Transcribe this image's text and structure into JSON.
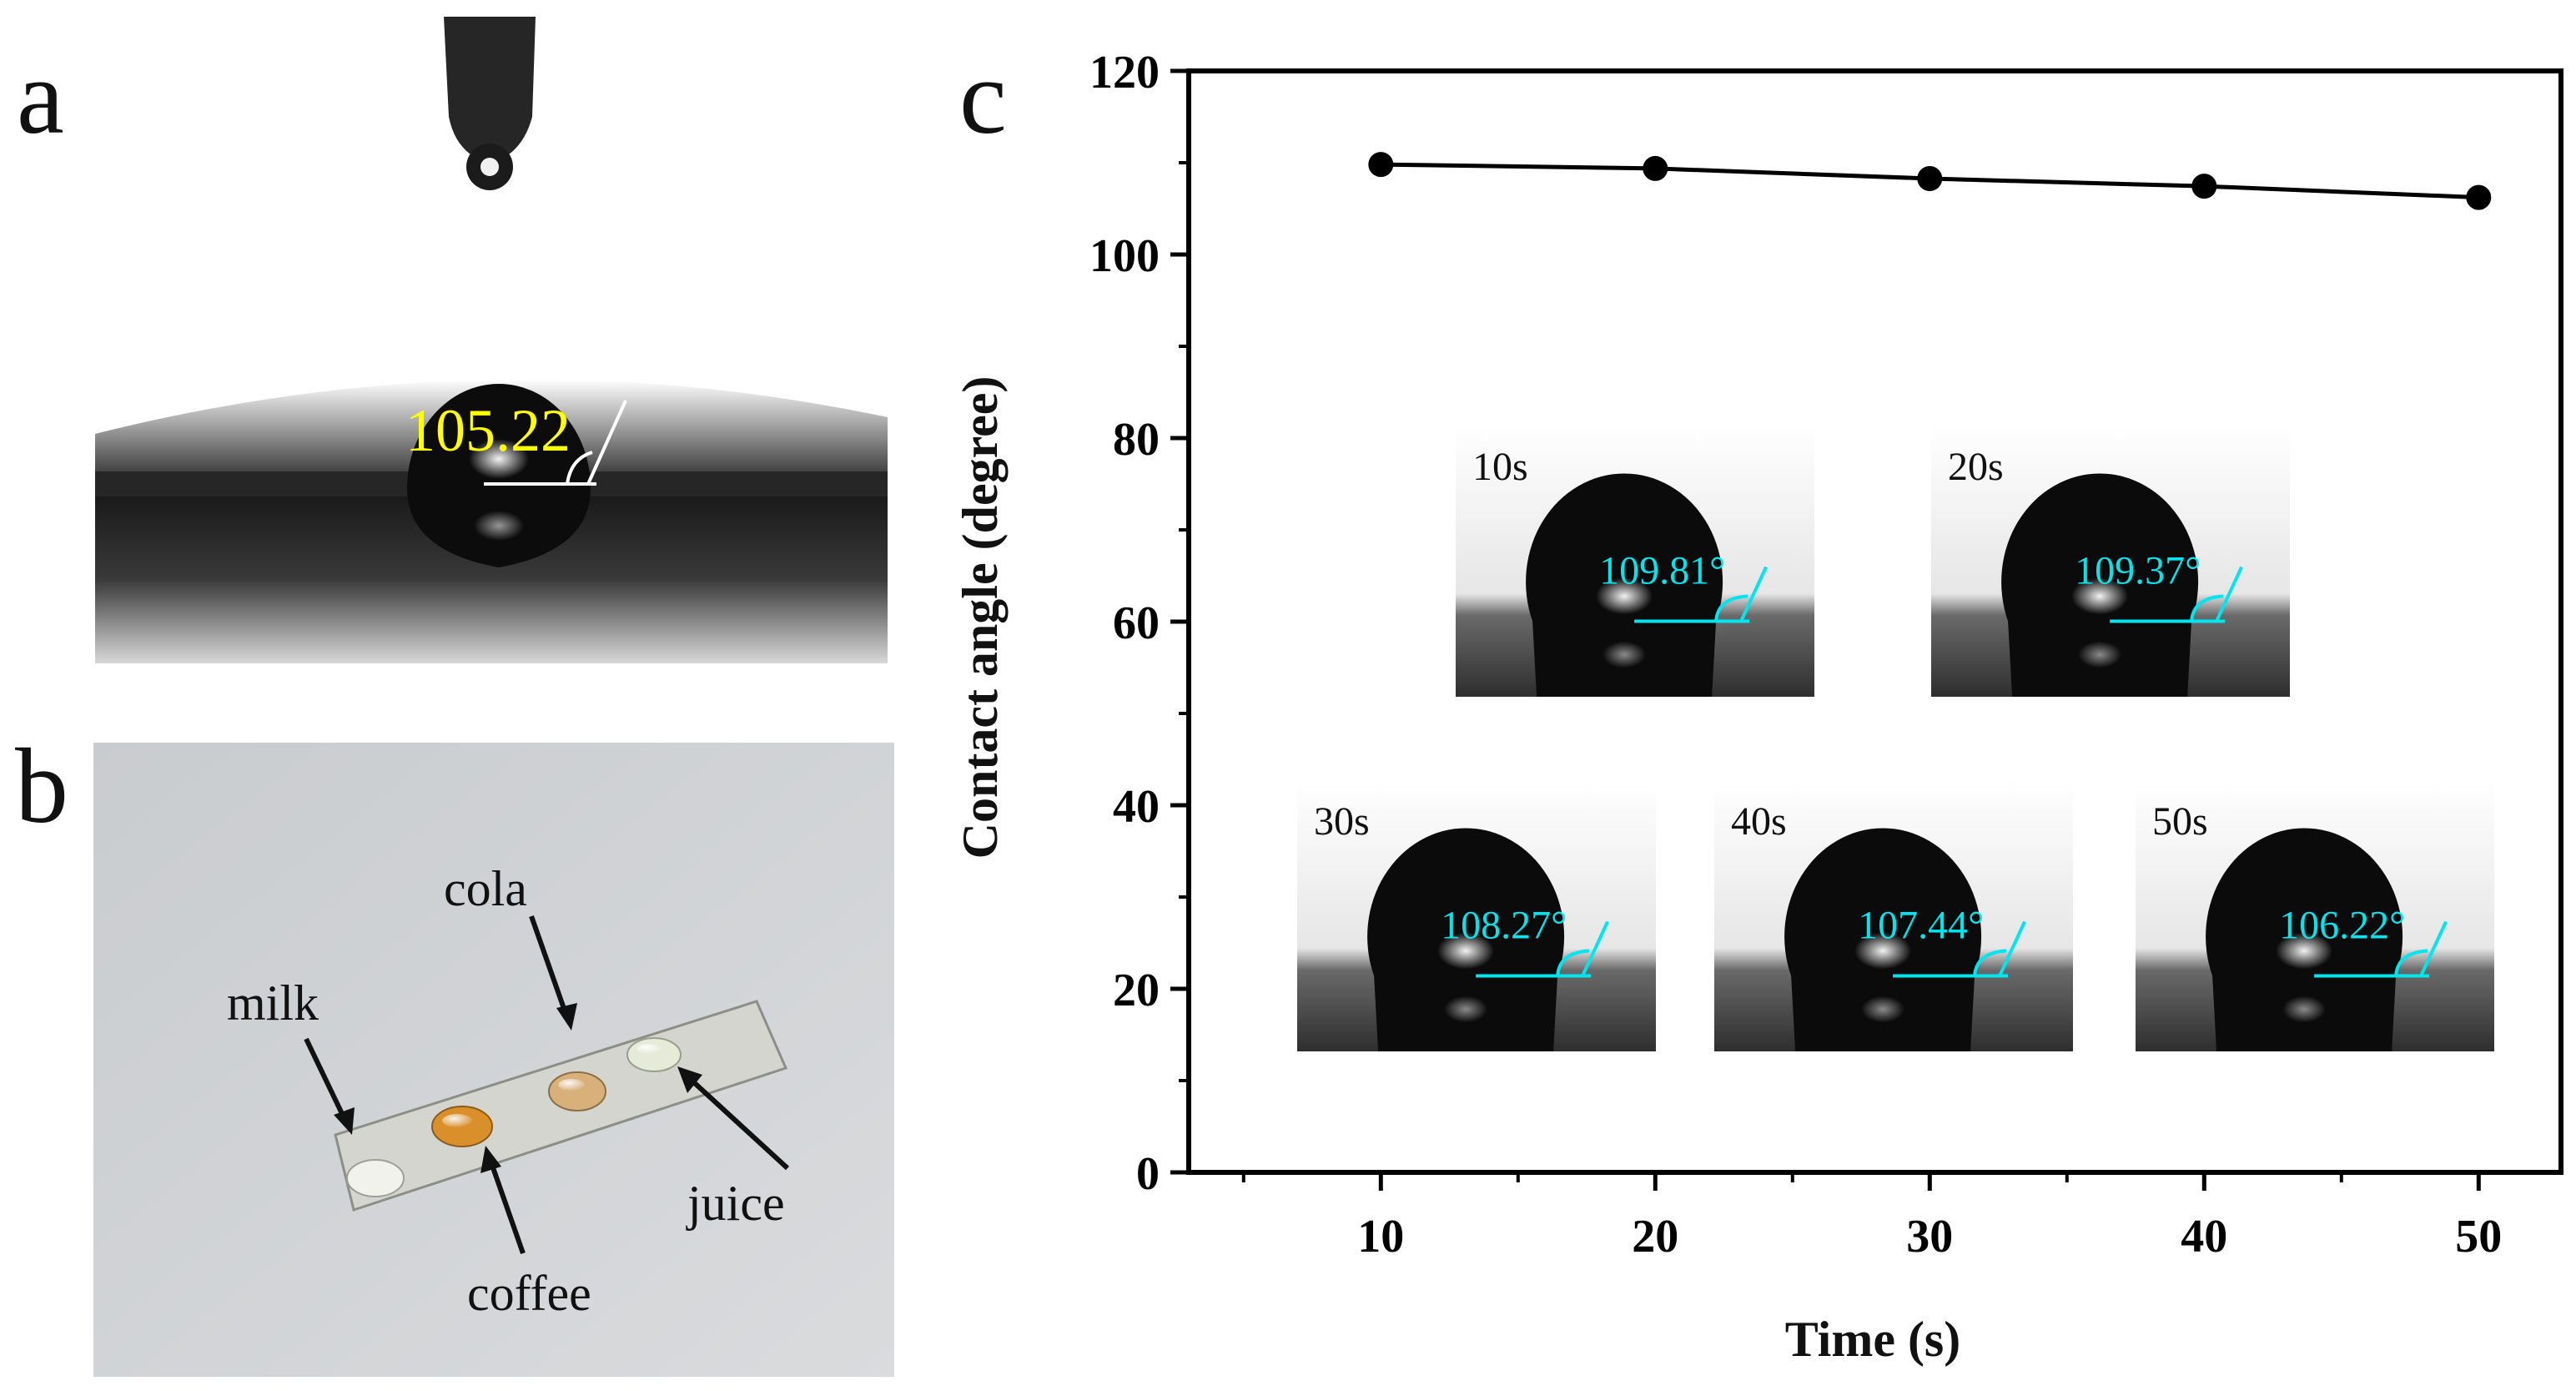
{
  "panels": {
    "a": {
      "letter": "a",
      "angle_label": "105.22"
    },
    "b": {
      "letter": "b",
      "labels": [
        "cola",
        "milk",
        "juice",
        "coffee"
      ]
    },
    "c": {
      "letter": "c"
    }
  },
  "colors": {
    "accent_yellow": "#ffff00",
    "cyan": "#00e5ee",
    "marker": "#000000",
    "drop_milk": "#f2f2ec",
    "drop_coffee": "#d9902b",
    "drop_cola": "#d8b17a",
    "drop_juice": "#e6ead8"
  },
  "chart_data": {
    "type": "line",
    "title": "",
    "xlabel": "Time (s)",
    "ylabel": "Contact angle (degree)",
    "x": [
      10,
      20,
      30,
      40,
      50
    ],
    "series": [
      {
        "name": "Contact angle",
        "values": [
          109.81,
          109.37,
          108.27,
          107.44,
          106.22
        ]
      }
    ],
    "xlim": [
      3,
      53
    ],
    "ylim": [
      0,
      120
    ],
    "xticks": [
      "10",
      "20",
      "30",
      "40",
      "50"
    ],
    "yticks": [
      "0",
      "20",
      "40",
      "60",
      "80",
      "100",
      "120"
    ],
    "grid": false,
    "insets": [
      {
        "time": "10s",
        "angle": "109.81°"
      },
      {
        "time": "20s",
        "angle": "109.37°"
      },
      {
        "time": "30s",
        "angle": "108.27°"
      },
      {
        "time": "40s",
        "angle": "107.44°"
      },
      {
        "time": "50s",
        "angle": "106.22°"
      }
    ]
  }
}
